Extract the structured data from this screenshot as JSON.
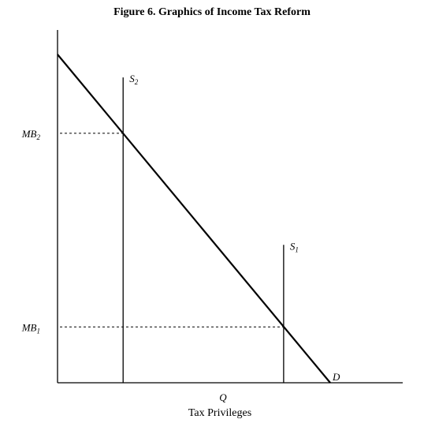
{
  "chart_data": {
    "type": "line",
    "title": "Figure 6. Graphics of Income Tax Reform",
    "xlabel_symbol": "Q",
    "xlabel": "Tax Privileges",
    "ylabel": "",
    "xlim": [
      0,
      10
    ],
    "ylim": [
      0,
      10
    ],
    "grid": false,
    "demand": {
      "label": "D",
      "x": [
        0,
        7.9
      ],
      "y": [
        10,
        0
      ]
    },
    "supply": [
      {
        "label_main": "S",
        "label_sub": "2",
        "x": 1.9,
        "y_top": 9.3
      },
      {
        "label_main": "S",
        "label_sub": "1",
        "x": 6.55,
        "y_top": 4.2
      }
    ],
    "marginal_benefit": [
      {
        "label_main": "MB",
        "label_sub": "2",
        "x": 1.9,
        "y": 7.6
      },
      {
        "label_main": "MB",
        "label_sub": "1",
        "x": 6.55,
        "y": 1.7
      }
    ]
  }
}
